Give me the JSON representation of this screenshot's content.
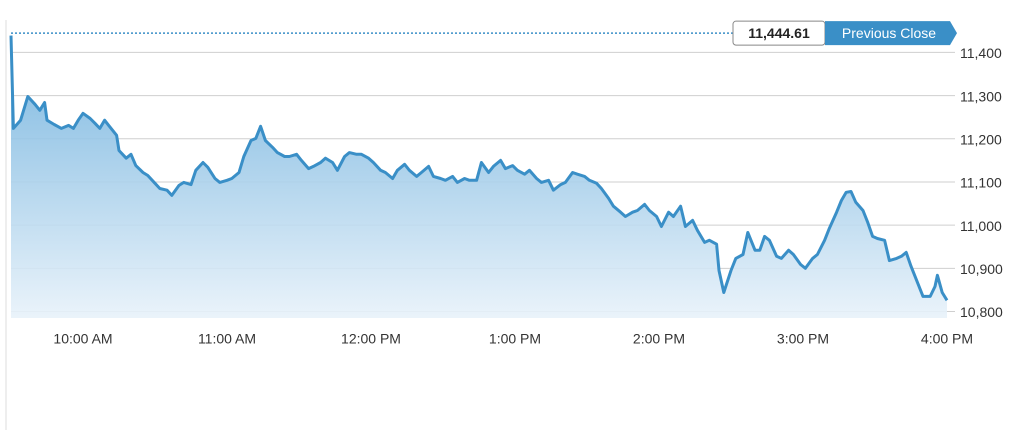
{
  "chart_data": {
    "type": "area-line",
    "color": "#3a8fc7",
    "xlim": [
      570,
      960
    ],
    "xticks": [
      {
        "value": 600,
        "label": "10:00 AM"
      },
      {
        "value": 660,
        "label": "11:00 AM"
      },
      {
        "value": 720,
        "label": "12:00 PM"
      },
      {
        "value": 780,
        "label": "1:00 PM"
      },
      {
        "value": 840,
        "label": "2:00 PM"
      },
      {
        "value": 900,
        "label": "3:00 PM"
      },
      {
        "value": 960,
        "label": "4:00 PM"
      }
    ],
    "ylim": [
      10785,
      11445
    ],
    "yticks": [
      {
        "value": 10800,
        "label": "10,800"
      },
      {
        "value": 10900,
        "label": "10,900"
      },
      {
        "value": 11000,
        "label": "11,000"
      },
      {
        "value": 11100,
        "label": "11,100"
      },
      {
        "value": 11200,
        "label": "11,200"
      },
      {
        "value": 11300,
        "label": "11,300"
      },
      {
        "value": 11400,
        "label": "11,400"
      }
    ],
    "grid": true,
    "reference": {
      "value": 11444.61,
      "label": "11,444.61",
      "text": "Previous Close"
    },
    "x": [
      570,
      571,
      574,
      577,
      580,
      582,
      584,
      585,
      588,
      591,
      594,
      596,
      598,
      600,
      603,
      605,
      607,
      609,
      611,
      614,
      615,
      618,
      620,
      622,
      625,
      627,
      630,
      632,
      635,
      637,
      640,
      642,
      645,
      647,
      650,
      652,
      655,
      657,
      660,
      662,
      665,
      667,
      670,
      672,
      674,
      676,
      679,
      681,
      684,
      686,
      689,
      691,
      694,
      696,
      699,
      701,
      704,
      706,
      709,
      711,
      714,
      716,
      719,
      721,
      724,
      726,
      729,
      731,
      734,
      736,
      739,
      741,
      744,
      746,
      749,
      751,
      754,
      756,
      759,
      761,
      764,
      766,
      769,
      771,
      774,
      776,
      779,
      781,
      784,
      786,
      789,
      791,
      794,
      796,
      799,
      801,
      804,
      806,
      809,
      811,
      814,
      816,
      819,
      821,
      824,
      826,
      829,
      831,
      834,
      836,
      839,
      841,
      844,
      846,
      849,
      851,
      854,
      856,
      859,
      861,
      864,
      865,
      867,
      870,
      872,
      875,
      877,
      880,
      882,
      884,
      886,
      889,
      891,
      894,
      896,
      899,
      901,
      904,
      906,
      909,
      911,
      914,
      916,
      918,
      920,
      922,
      925,
      927,
      929,
      931,
      934,
      936,
      939,
      941,
      943,
      945,
      948,
      950,
      953,
      955,
      956,
      958,
      960
    ],
    "values": [
      11439,
      11224,
      11243,
      11298,
      11280,
      11266,
      11284,
      11243,
      11233,
      11224,
      11231,
      11224,
      11243,
      11259,
      11247,
      11236,
      11224,
      11243,
      11229,
      11208,
      11173,
      11155,
      11164,
      11138,
      11122,
      11115,
      11097,
      11085,
      11081,
      11069,
      11092,
      11099,
      11094,
      11127,
      11145,
      11134,
      11108,
      11099,
      11104,
      11108,
      11122,
      11159,
      11196,
      11201,
      11229,
      11196,
      11180,
      11168,
      11159,
      11159,
      11164,
      11150,
      11131,
      11136,
      11145,
      11155,
      11145,
      11127,
      11159,
      11168,
      11164,
      11164,
      11155,
      11145,
      11127,
      11122,
      11108,
      11127,
      11141,
      11127,
      11113,
      11122,
      11136,
      11113,
      11108,
      11104,
      11113,
      11099,
      11108,
      11104,
      11104,
      11145,
      11122,
      11136,
      11150,
      11131,
      11138,
      11127,
      11118,
      11127,
      11108,
      11099,
      11104,
      11081,
      11094,
      11099,
      11122,
      11118,
      11113,
      11104,
      11097,
      11085,
      11062,
      11044,
      11030,
      11020,
      11030,
      11034,
      11048,
      11034,
      11020,
      10997,
      11030,
      11020,
      11044,
      10997,
      11011,
      10988,
      10960,
      10965,
      10956,
      10895,
      10844,
      10895,
      10923,
      10932,
      10983,
      10942,
      10942,
      10974,
      10965,
      10928,
      10923,
      10942,
      10932,
      10909,
      10900,
      10923,
      10932,
      10965,
      10993,
      11030,
      11057,
      11076,
      11078,
      11053,
      11034,
      11006,
      10974,
      10969,
      10965,
      10918,
      10923,
      10928,
      10937,
      10905,
      10863,
      10835,
      10835,
      10858,
      10884,
      10844,
      10826
    ]
  }
}
